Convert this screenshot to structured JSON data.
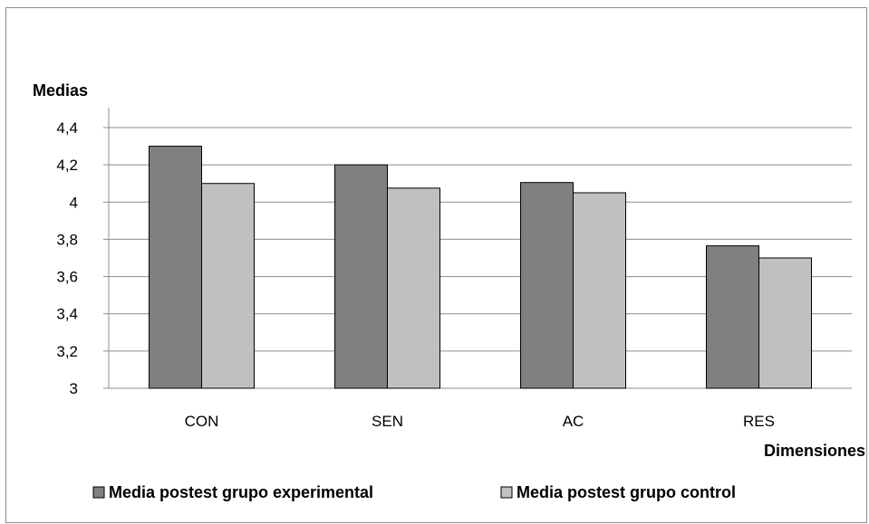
{
  "chart_data": {
    "type": "bar",
    "title": "",
    "ylabel": "Medias",
    "xlabel": "Dimensiones",
    "categories": [
      "CON",
      "SEN",
      "AC",
      "RES"
    ],
    "ylim": [
      3,
      4.4
    ],
    "yticks": [
      "3",
      "3,2",
      "3,4",
      "3,6",
      "3,8",
      "4",
      "4,2",
      "4,4"
    ],
    "grid": true,
    "legend_position": "bottom",
    "series": [
      {
        "name": "Media postest grupo experimental",
        "values": [
          4.3,
          4.2,
          4.105,
          3.765
        ],
        "color": "#808080"
      },
      {
        "name": "Media postest grupo control",
        "values": [
          4.1,
          4.075,
          4.05,
          3.7
        ],
        "color": "#c0c0c0"
      }
    ]
  }
}
